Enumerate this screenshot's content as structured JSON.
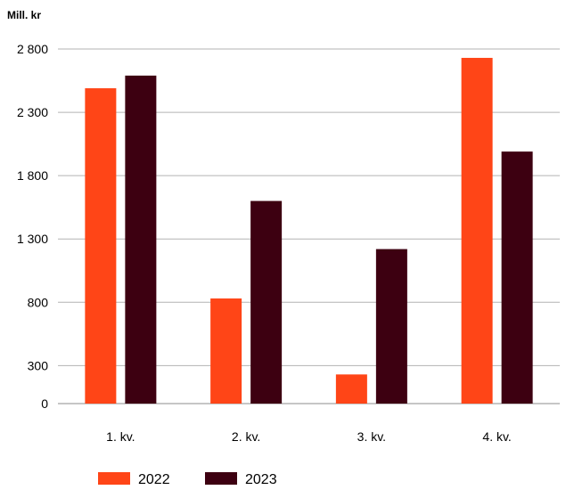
{
  "chart_data": {
    "type": "bar",
    "unit_label": "Mill. kr",
    "categories": [
      "1. kv.",
      "2. kv.",
      "3. kv.",
      "4. kv."
    ],
    "series": [
      {
        "name": "2022",
        "color": "#ff4517",
        "values": [
          2490,
          830,
          230,
          2730
        ]
      },
      {
        "name": "2023",
        "color": "#3d0011",
        "values": [
          2590,
          1600,
          1220,
          1990
        ]
      }
    ],
    "ylim": [
      0,
      2800
    ],
    "yticks": [
      0,
      300,
      800,
      1300,
      1800,
      2300,
      2800
    ],
    "ytick_labels": [
      "0",
      "300",
      "800",
      "1 300",
      "1 800",
      "2 300",
      "2 800"
    ],
    "grid": true,
    "legend_position": "bottom-left",
    "title": "",
    "xlabel": "",
    "ylabel": ""
  }
}
